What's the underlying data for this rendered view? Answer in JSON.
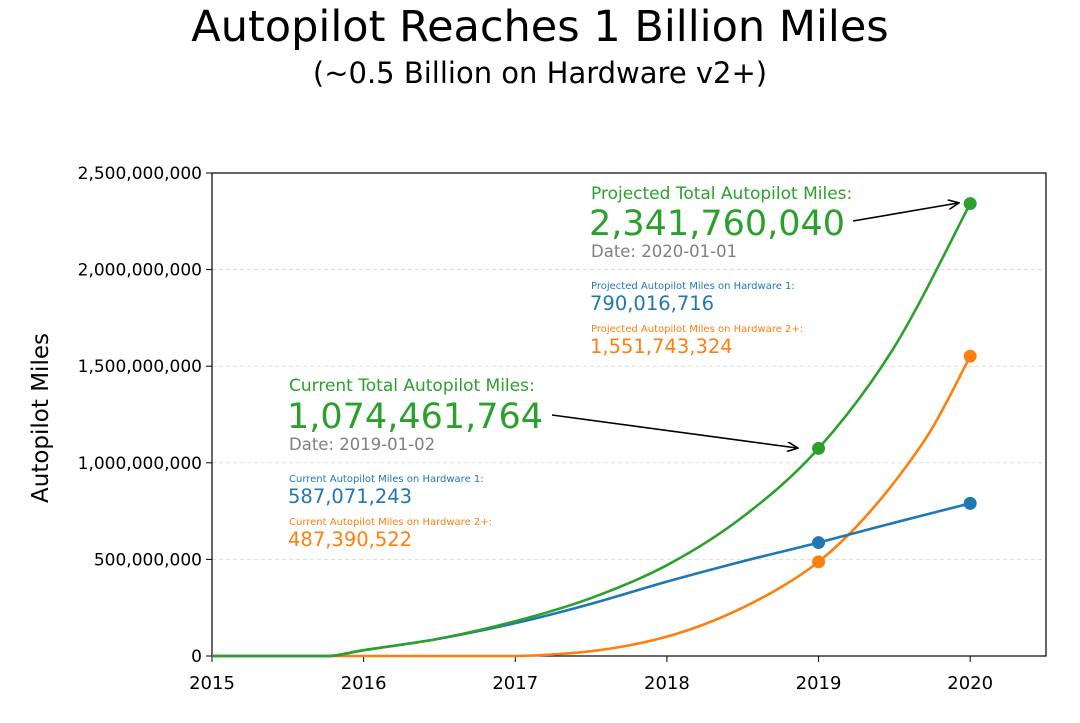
{
  "title": "Autopilot Reaches 1 Billion Miles",
  "subtitle": "(~0.5 Billion on Hardware v2+)",
  "colors": {
    "total": "#2ca02c",
    "hw1": "#1f77b4",
    "hw2": "#ff7f0e",
    "date": "#7f7f7f"
  },
  "chart_data": {
    "type": "line",
    "title": "Autopilot Reaches 1 Billion Miles",
    "subtitle": "(~0.5 Billion on Hardware v2+)",
    "xlabel": "",
    "ylabel": "Autopilot Miles",
    "xlim": [
      2015,
      2020.5
    ],
    "ylim": [
      0,
      2500000000
    ],
    "x_ticks": [
      "2015",
      "2016",
      "2017",
      "2018",
      "2019",
      "2020"
    ],
    "y_ticks": [
      "0",
      "500,000,000",
      "1,000,000,000",
      "1,500,000,000",
      "2,000,000,000",
      "2,500,000,000"
    ],
    "grid": "horizontal dashed",
    "series": [
      {
        "name": "Total Autopilot Miles",
        "color": "#2ca02c",
        "x": [
          2015.0,
          2015.5,
          2015.78,
          2016.0,
          2016.5,
          2017.0,
          2017.5,
          2018.0,
          2018.5,
          2019.0,
          2019.5,
          2020.0
        ],
        "values": [
          0,
          0,
          0,
          30000000,
          90000000,
          180000000,
          300000000,
          470000000,
          720000000,
          1074461764,
          1600000000,
          2341760040
        ],
        "markers": [
          {
            "x": 2019.0,
            "y": 1074461764
          },
          {
            "x": 2020.0,
            "y": 2341760040
          }
        ]
      },
      {
        "name": "Autopilot Miles on Hardware 1",
        "color": "#1f77b4",
        "x": [
          2015.0,
          2015.5,
          2015.78,
          2016.0,
          2016.5,
          2017.0,
          2017.5,
          2018.0,
          2018.5,
          2019.0,
          2019.5,
          2020.0
        ],
        "values": [
          0,
          0,
          0,
          30000000,
          90000000,
          170000000,
          270000000,
          385000000,
          490000000,
          587071243,
          690000000,
          790016716
        ],
        "markers": [
          {
            "x": 2019.0,
            "y": 587071243
          },
          {
            "x": 2020.0,
            "y": 790016716
          }
        ]
      },
      {
        "name": "Autopilot Miles on Hardware 2+",
        "color": "#ff7f0e",
        "x": [
          2015.0,
          2016.0,
          2016.5,
          2017.0,
          2017.25,
          2017.5,
          2017.75,
          2018.0,
          2018.25,
          2018.5,
          2018.75,
          2019.0,
          2019.25,
          2019.5,
          2019.75,
          2020.0
        ],
        "values": [
          0,
          0,
          0,
          0,
          8000000,
          25000000,
          55000000,
          100000000,
          165000000,
          250000000,
          355000000,
          487390522,
          670000000,
          900000000,
          1180000000,
          1551743324
        ],
        "markers": [
          {
            "x": 2019.0,
            "y": 487390522
          },
          {
            "x": 2020.0,
            "y": 1551743324
          }
        ]
      }
    ],
    "annotations": {
      "projected": {
        "header": "Projected Total Autopilot Miles:",
        "value": "2,341,760,040",
        "date": "Date: 2020-01-01",
        "hw1_label": "Projected Autopilot Miles on Hardware 1:",
        "hw1_value": "790,016,716",
        "hw2_label": "Projected Autopilot Miles on Hardware 2+:",
        "hw2_value": "1,551,743,324"
      },
      "current": {
        "header": "Current Total Autopilot Miles:",
        "value": "1,074,461,764",
        "date": "Date: 2019-01-02",
        "hw1_label": "Current Autopilot Miles on Hardware 1:",
        "hw1_value": "587,071,243",
        "hw2_label": "Current Autopilot Miles on Hardware 2+:",
        "hw2_value": "487,390,522"
      }
    }
  }
}
